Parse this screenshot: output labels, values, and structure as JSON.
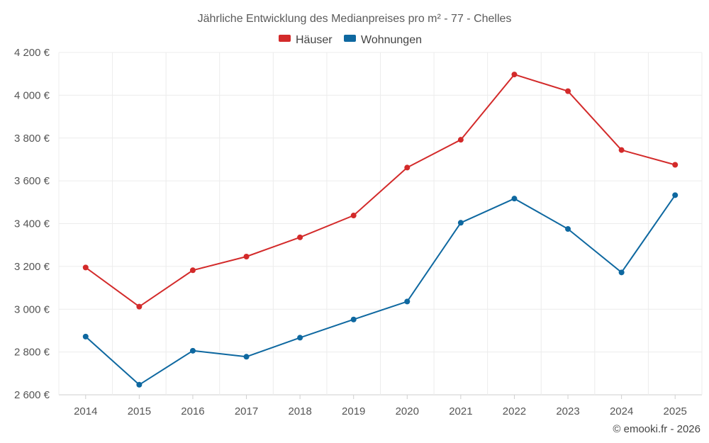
{
  "chart_data": {
    "type": "line",
    "title": "Jährliche Entwicklung des Medianpreises pro m² - 77 - Chelles",
    "categories": [
      "2014",
      "2015",
      "2016",
      "2017",
      "2018",
      "2019",
      "2020",
      "2021",
      "2022",
      "2023",
      "2024",
      "2025"
    ],
    "series": [
      {
        "name": "Häuser",
        "color": "#d32a2a",
        "values": [
          3195,
          3012,
          3182,
          3246,
          3336,
          3438,
          3662,
          3792,
          4097,
          4019,
          3744,
          3675
        ]
      },
      {
        "name": "Wohnungen",
        "color": "#0e68a0",
        "values": [
          2872,
          2647,
          2806,
          2778,
          2867,
          2952,
          3036,
          3404,
          3517,
          3375,
          3172,
          3533
        ]
      }
    ],
    "ylim": [
      2600,
      4200
    ],
    "yticks": [
      2600,
      2800,
      3000,
      3200,
      3400,
      3600,
      3800,
      4000,
      4200
    ],
    "ytick_labels": [
      "2 600 €",
      "2 800 €",
      "3 000 €",
      "3 200 €",
      "3 400 €",
      "3 600 €",
      "3 800 €",
      "4 000 €",
      "4 200 €"
    ],
    "xlabel": "",
    "ylabel": "",
    "grid": true,
    "legend_position": "top-center",
    "credit": "© emooki.fr - 2026"
  }
}
